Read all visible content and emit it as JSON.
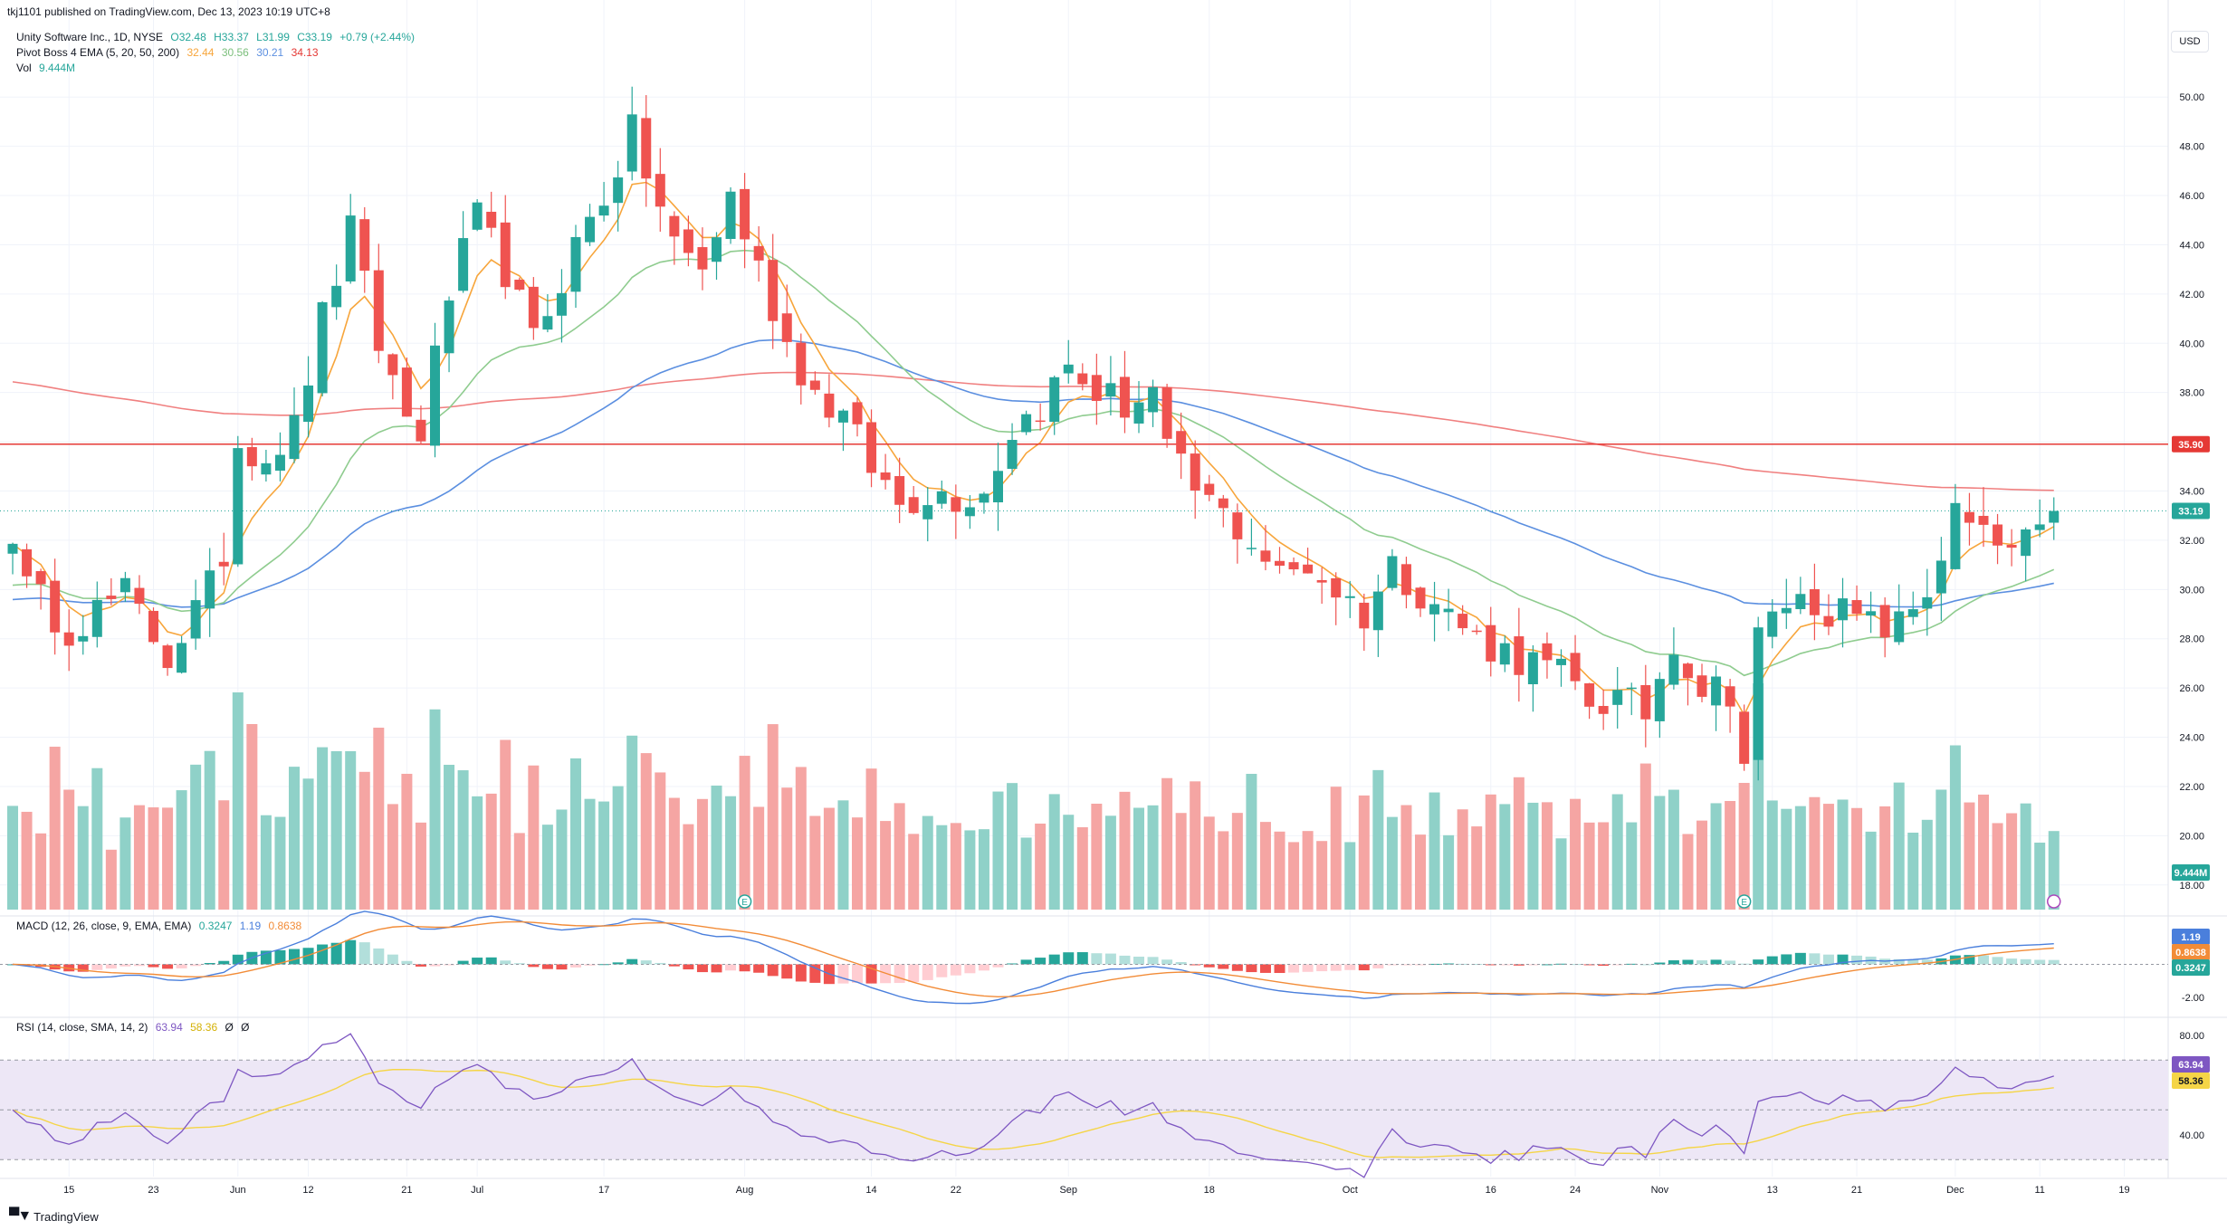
{
  "header": {
    "published": "tkj1101 published on TradingView.com, Dec 13, 2023 10:19 UTC+8"
  },
  "legend": {
    "main": "Unity Software Inc., 1D, NYSE",
    "ohlc": {
      "o": "O32.48",
      "h": "H33.37",
      "l": "L31.99",
      "c": "C33.19",
      "chg": "+0.79 (+2.44%)"
    },
    "ema_label": "Pivot Boss 4 EMA (5, 20, 50, 200)",
    "ema_values": [
      "32.44",
      "30.56",
      "30.21",
      "34.13"
    ],
    "vol_label": "Vol",
    "vol_value": "9.444M",
    "macd_label": "MACD (12, 26, close, 9, EMA, EMA)",
    "macd_values": [
      "0.3247",
      "1.19",
      "0.8638"
    ],
    "rsi_label": "RSI (14, close, SMA, 14, 2)",
    "rsi_values": [
      "63.94",
      "58.36",
      "Ø",
      "Ø"
    ]
  },
  "currency_button": "USD",
  "footer": {
    "brand": "TradingView"
  },
  "colors": {
    "up": "#26a69a",
    "down": "#ef5350",
    "vol_up": "#8fd1c8",
    "vol_down": "#f5a5a3",
    "ema5": "#f7a53b",
    "ema20": "#8fcc8f",
    "ema50": "#5b8fe0",
    "ema200": "#f08080",
    "level": "#e53935",
    "macd": "#4a7fdc",
    "signal": "#f28c38",
    "rsi": "#7e57c2",
    "rsi_ma": "#f5d547",
    "rsi_band": "#ede7f6"
  },
  "chart_data": [
    {
      "type": "candlestick",
      "title": "Unity Software Inc., 1D, NYSE",
      "ylim": [
        17,
        51
      ],
      "y_ticks": [
        18,
        20,
        22,
        24,
        26,
        28,
        30,
        32,
        34,
        36,
        38,
        40,
        42,
        44,
        46,
        48,
        50
      ],
      "x_ticks": [
        {
          "i": 4,
          "label": "15"
        },
        {
          "i": 10,
          "label": "23"
        },
        {
          "i": 16,
          "label": "Jun"
        },
        {
          "i": 21,
          "label": "12"
        },
        {
          "i": 28,
          "label": "21"
        },
        {
          "i": 33,
          "label": "Jul"
        },
        {
          "i": 42,
          "label": "17"
        },
        {
          "i": 52,
          "label": "Aug"
        },
        {
          "i": 61,
          "label": "14"
        },
        {
          "i": 67,
          "label": "22"
        },
        {
          "i": 75,
          "label": "Sep"
        },
        {
          "i": 85,
          "label": "18"
        },
        {
          "i": 95,
          "label": "Oct"
        },
        {
          "i": 105,
          "label": "16"
        },
        {
          "i": 111,
          "label": "24"
        },
        {
          "i": 117,
          "label": "Nov"
        },
        {
          "i": 125,
          "label": "13"
        },
        {
          "i": 131,
          "label": "21"
        },
        {
          "i": 138,
          "label": "Dec"
        },
        {
          "i": 144,
          "label": "11"
        },
        {
          "i": 150,
          "label": "19"
        }
      ],
      "horizontal_level": 35.9,
      "last_price": 33.19,
      "price_labels": [
        "35.90",
        "33.19",
        "9.444M"
      ],
      "series": [
        {
          "name": "Unity Software Inc.",
          "anchors": [
            [
              0,
              32.5
            ],
            [
              1,
              30
            ],
            [
              4,
              28.5
            ],
            [
              8,
              29.8
            ],
            [
              11,
              27.3
            ],
            [
              14,
              30
            ],
            [
              15,
              31.5
            ],
            [
              16,
              36
            ],
            [
              18,
              35.5
            ],
            [
              20,
              36.5
            ],
            [
              22,
              41
            ],
            [
              24,
              44.5
            ],
            [
              26,
              40
            ],
            [
              28,
              37
            ],
            [
              29,
              36.5
            ],
            [
              31,
              42
            ],
            [
              33,
              45
            ],
            [
              35,
              43
            ],
            [
              37,
              40
            ],
            [
              40,
              44
            ],
            [
              42,
              46
            ],
            [
              44,
              48.5
            ],
            [
              45,
              47
            ],
            [
              47,
              44
            ],
            [
              49,
              43
            ],
            [
              51,
              46
            ],
            [
              53,
              43
            ],
            [
              55,
              40
            ],
            [
              57,
              38
            ],
            [
              59,
              37
            ],
            [
              61,
              35
            ],
            [
              63,
              33.5
            ],
            [
              65,
              34
            ],
            [
              67,
              33.8
            ],
            [
              69,
              34
            ],
            [
              71,
              36.5
            ],
            [
              73,
              37.5
            ],
            [
              75,
              39
            ],
            [
              77,
              38
            ],
            [
              79,
              37.5
            ],
            [
              81,
              38
            ],
            [
              82,
              35.5
            ],
            [
              84,
              34
            ],
            [
              86,
              33
            ],
            [
              88,
              32
            ],
            [
              90,
              30.5
            ],
            [
              92,
              31
            ],
            [
              94,
              30
            ],
            [
              96,
              29
            ],
            [
              98,
              31
            ],
            [
              100,
              30
            ],
            [
              102,
              29
            ],
            [
              104,
              28
            ],
            [
              106,
              27.5
            ],
            [
              108,
              27
            ],
            [
              110,
              26.5
            ],
            [
              112,
              25.5
            ],
            [
              114,
              25.5
            ],
            [
              116,
              25
            ],
            [
              118,
              28
            ],
            [
              120,
              26
            ],
            [
              122,
              26
            ],
            [
              123,
              23
            ],
            [
              124,
              28
            ],
            [
              126,
              29.5
            ],
            [
              128,
              29.5
            ],
            [
              130,
              29
            ],
            [
              132,
              28.5
            ],
            [
              134,
              28.5
            ],
            [
              136,
              30
            ],
            [
              138,
              33
            ],
            [
              140,
              32
            ],
            [
              142,
              31.5
            ],
            [
              144,
              32
            ],
            [
              145,
              33.19
            ]
          ]
        },
        {
          "name": "EMA 5",
          "value": "32.44"
        },
        {
          "name": "EMA 20",
          "value": "30.56"
        },
        {
          "name": "EMA 50",
          "value": "30.21"
        },
        {
          "name": "EMA 200",
          "value": "34.13"
        },
        {
          "name": "Vol",
          "value": "9.444M"
        }
      ]
    },
    {
      "type": "line",
      "title": "MACD (12, 26, close, 9, EMA, EMA)",
      "ylim": [
        -3,
        2.5
      ],
      "y_ticks": [
        -2
      ],
      "price_labels": [
        "1.19",
        "0.8638",
        "0.3247"
      ]
    },
    {
      "type": "line",
      "title": "RSI (14, close, SMA, 14, 2)",
      "ylim": [
        25,
        85
      ],
      "y_ticks": [
        40,
        80
      ],
      "bands": [
        30,
        50,
        70
      ],
      "price_labels": [
        "63.94",
        "58.36"
      ]
    }
  ]
}
